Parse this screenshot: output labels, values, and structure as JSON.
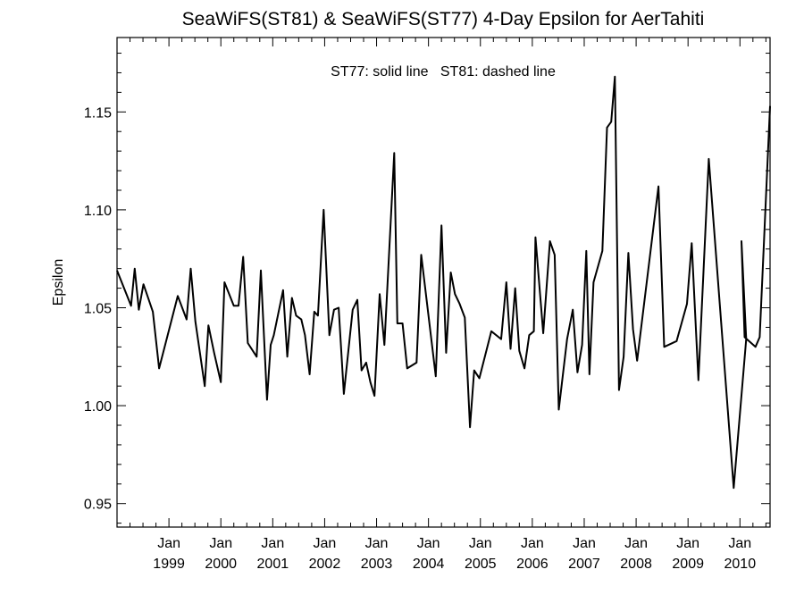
{
  "chart_data": {
    "type": "line",
    "title": "SeaWiFS(ST81) & SeaWiFS(ST77) 4-Day Epsilon for AerTahiti",
    "ylabel": "Epsilon",
    "xlabel": "",
    "annotation": "ST77: solid line   ST81: dashed line",
    "xlim": [
      1998.0,
      2010.58
    ],
    "ylim": [
      0.938,
      1.188
    ],
    "yticks": [
      0.95,
      1.0,
      1.05,
      1.1,
      1.15
    ],
    "ytick_labels": [
      "0.95",
      "1.00",
      "1.05",
      "1.10",
      "1.15"
    ],
    "xticks": [
      {
        "x": 1999.0,
        "month": "Jan",
        "year": "1999"
      },
      {
        "x": 2000.0,
        "month": "Jan",
        "year": "2000"
      },
      {
        "x": 2001.0,
        "month": "Jan",
        "year": "2001"
      },
      {
        "x": 2002.0,
        "month": "Jan",
        "year": "2002"
      },
      {
        "x": 2003.0,
        "month": "Jan",
        "year": "2003"
      },
      {
        "x": 2004.0,
        "month": "Jan",
        "year": "2004"
      },
      {
        "x": 2005.0,
        "month": "Jan",
        "year": "2005"
      },
      {
        "x": 2006.0,
        "month": "Jan",
        "year": "2006"
      },
      {
        "x": 2007.0,
        "month": "Jan",
        "year": "2007"
      },
      {
        "x": 2008.0,
        "month": "Jan",
        "year": "2008"
      },
      {
        "x": 2009.0,
        "month": "Jan",
        "year": "2009"
      },
      {
        "x": 2010.0,
        "month": "Jan",
        "year": "2010"
      }
    ],
    "grid": false,
    "series": [
      {
        "name": "ST77",
        "style": "solid",
        "points": [
          [
            1998.0,
            1.069
          ],
          [
            1998.27,
            1.051
          ],
          [
            1998.34,
            1.07
          ],
          [
            1998.42,
            1.049
          ],
          [
            1998.51,
            1.062
          ],
          [
            1998.69,
            1.048
          ],
          [
            1998.81,
            1.019
          ],
          [
            1999.17,
            1.056
          ],
          [
            1999.34,
            1.044
          ],
          [
            1999.42,
            1.07
          ],
          [
            1999.51,
            1.043
          ],
          [
            1999.69,
            1.01
          ],
          [
            1999.76,
            1.041
          ],
          [
            1999.87,
            1.027
          ],
          [
            2000.0,
            1.012
          ],
          [
            2000.07,
            1.063
          ],
          [
            2000.25,
            1.051
          ],
          [
            2000.34,
            1.051
          ],
          [
            2000.43,
            1.076
          ],
          [
            2000.52,
            1.032
          ],
          [
            2000.69,
            1.025
          ],
          [
            2000.77,
            1.069
          ],
          [
            2000.89,
            1.003
          ],
          [
            2000.96,
            1.031
          ],
          [
            2001.02,
            1.036
          ],
          [
            2001.2,
            1.059
          ],
          [
            2001.28,
            1.025
          ],
          [
            2001.37,
            1.055
          ],
          [
            2001.45,
            1.046
          ],
          [
            2001.55,
            1.044
          ],
          [
            2001.62,
            1.036
          ],
          [
            2001.71,
            1.016
          ],
          [
            2001.8,
            1.048
          ],
          [
            2001.87,
            1.046
          ],
          [
            2001.98,
            1.1
          ],
          [
            2002.09,
            1.036
          ],
          [
            2002.18,
            1.049
          ],
          [
            2002.27,
            1.05
          ],
          [
            2002.37,
            1.006
          ],
          [
            2002.54,
            1.049
          ],
          [
            2002.63,
            1.054
          ],
          [
            2002.71,
            1.018
          ],
          [
            2002.8,
            1.022
          ],
          [
            2002.88,
            1.012
          ],
          [
            2002.96,
            1.005
          ],
          [
            2003.06,
            1.057
          ],
          [
            2003.15,
            1.031
          ],
          [
            2003.34,
            1.129
          ],
          [
            2003.4,
            1.042
          ],
          [
            2003.5,
            1.042
          ],
          [
            2003.59,
            1.019
          ],
          [
            2003.77,
            1.022
          ],
          [
            2003.86,
            1.077
          ],
          [
            2004.14,
            1.015
          ],
          [
            2004.25,
            1.092
          ],
          [
            2004.34,
            1.027
          ],
          [
            2004.43,
            1.068
          ],
          [
            2004.51,
            1.057
          ],
          [
            2004.6,
            1.052
          ],
          [
            2004.7,
            1.045
          ],
          [
            2004.8,
            0.989
          ],
          [
            2004.88,
            1.018
          ],
          [
            2004.98,
            1.014
          ],
          [
            2005.21,
            1.038
          ],
          [
            2005.4,
            1.034
          ],
          [
            2005.5,
            1.063
          ],
          [
            2005.58,
            1.029
          ],
          [
            2005.67,
            1.06
          ],
          [
            2005.75,
            1.028
          ],
          [
            2005.85,
            1.019
          ],
          [
            2005.94,
            1.036
          ],
          [
            2006.03,
            1.038
          ],
          [
            2006.06,
            1.086
          ],
          [
            2006.21,
            1.037
          ],
          [
            2006.34,
            1.084
          ],
          [
            2006.43,
            1.077
          ],
          [
            2006.51,
            0.998
          ],
          [
            2006.67,
            1.034
          ],
          [
            2006.78,
            1.049
          ],
          [
            2006.87,
            1.017
          ],
          [
            2006.96,
            1.031
          ],
          [
            2007.04,
            1.079
          ],
          [
            2007.1,
            1.016
          ],
          [
            2007.18,
            1.063
          ],
          [
            2007.35,
            1.079
          ],
          [
            2007.44,
            1.142
          ],
          [
            2007.52,
            1.145
          ],
          [
            2007.59,
            1.168
          ],
          [
            2007.67,
            1.008
          ],
          [
            2007.76,
            1.025
          ],
          [
            2007.85,
            1.078
          ],
          [
            2007.94,
            1.039
          ],
          [
            2008.02,
            1.023
          ],
          [
            2008.43,
            1.112
          ],
          [
            2008.54,
            1.03
          ],
          [
            2008.78,
            1.033
          ],
          [
            2008.98,
            1.052
          ],
          [
            2009.07,
            1.083
          ],
          [
            2009.2,
            1.013
          ],
          [
            2009.4,
            1.126
          ],
          [
            2009.88,
            0.958
          ],
          [
            2010.12,
            1.034
          ],
          [
            2010.03,
            1.084
          ],
          [
            2010.09,
            1.035
          ],
          [
            2010.3,
            1.03
          ],
          [
            2010.38,
            1.035
          ],
          [
            2010.58,
            1.153
          ]
        ]
      }
    ]
  }
}
